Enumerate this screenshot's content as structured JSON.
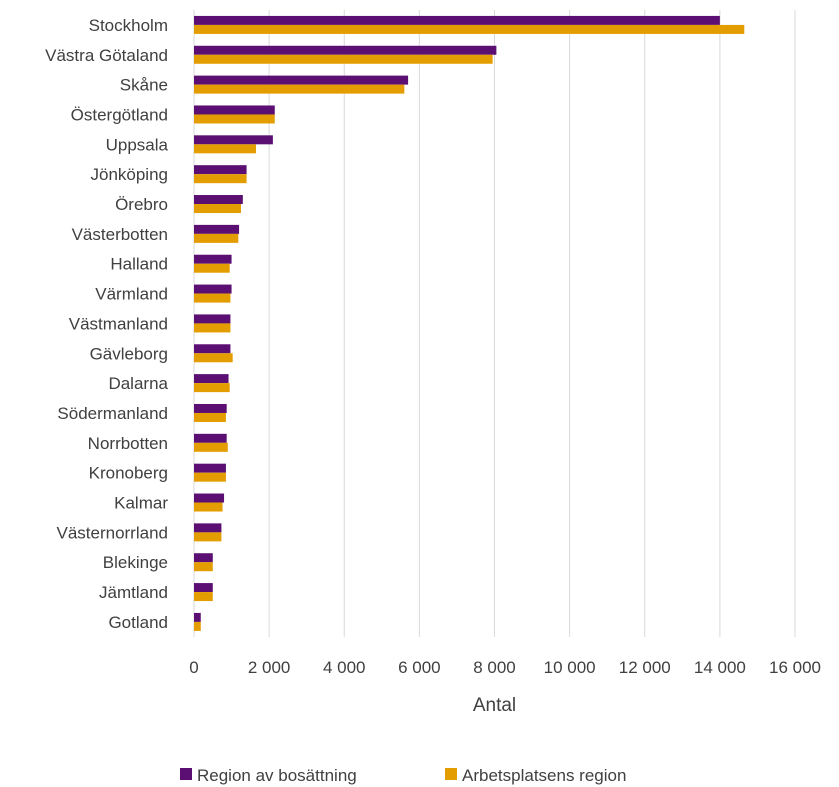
{
  "chart_data": {
    "type": "bar",
    "orientation": "horizontal",
    "categories": [
      "Stockholm",
      "Västra Götaland",
      "Skåne",
      "Östergötland",
      "Uppsala",
      "Jönköping",
      "Örebro",
      "Västerbotten",
      "Halland",
      "Värmland",
      "Västmanland",
      "Gävleborg",
      "Dalarna",
      "Södermanland",
      "Norrbotten",
      "Kronoberg",
      "Kalmar",
      "Västernorrland",
      "Blekinge",
      "Jämtland",
      "Gotland"
    ],
    "series": [
      {
        "name": "Region av bosättning",
        "color": "#5B0F73",
        "values": [
          14000,
          8050,
          5700,
          2150,
          2100,
          1400,
          1300,
          1200,
          1000,
          1000,
          970,
          970,
          920,
          870,
          870,
          850,
          800,
          730,
          500,
          500,
          180
        ]
      },
      {
        "name": "Arbetsplatsens region",
        "color": "#E49D00",
        "values": [
          14650,
          7950,
          5600,
          2150,
          1650,
          1400,
          1250,
          1180,
          950,
          970,
          970,
          1030,
          950,
          850,
          900,
          850,
          760,
          730,
          500,
          500,
          180
        ]
      }
    ],
    "xlabel": "Antal",
    "xlim": [
      0,
      16000
    ],
    "xticks": [
      0,
      2000,
      4000,
      6000,
      8000,
      10000,
      12000,
      14000,
      16000
    ],
    "xtick_labels": [
      "0",
      "2 000",
      "4 000",
      "6 000",
      "8 000",
      "10 000",
      "12 000",
      "14 000",
      "16 000"
    ],
    "grid": "vertical",
    "legend": "bottom"
  }
}
